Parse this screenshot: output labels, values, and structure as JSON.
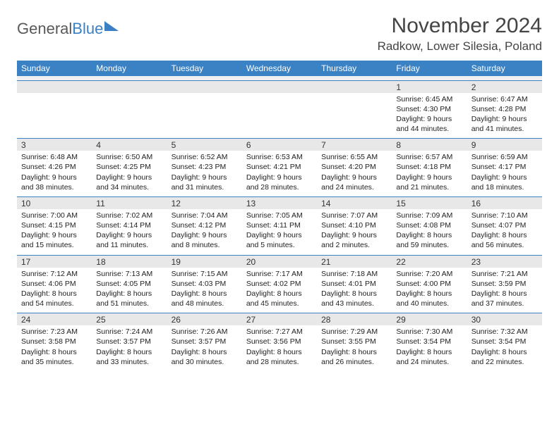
{
  "brand": {
    "part1": "General",
    "part2": "Blue"
  },
  "title": "November 2024",
  "location": "Radkow, Lower Silesia, Poland",
  "colors": {
    "header_bg": "#3b82c4",
    "header_fg": "#ffffff",
    "daynum_bg": "#e8e8e8",
    "border": "#3b82c4",
    "text": "#222222",
    "title_color": "#444444"
  },
  "dayNames": [
    "Sunday",
    "Monday",
    "Tuesday",
    "Wednesday",
    "Thursday",
    "Friday",
    "Saturday"
  ],
  "weeks": [
    [
      {
        "num": "",
        "sunrise": "",
        "sunset": "",
        "daylight": ""
      },
      {
        "num": "",
        "sunrise": "",
        "sunset": "",
        "daylight": ""
      },
      {
        "num": "",
        "sunrise": "",
        "sunset": "",
        "daylight": ""
      },
      {
        "num": "",
        "sunrise": "",
        "sunset": "",
        "daylight": ""
      },
      {
        "num": "",
        "sunrise": "",
        "sunset": "",
        "daylight": ""
      },
      {
        "num": "1",
        "sunrise": "Sunrise: 6:45 AM",
        "sunset": "Sunset: 4:30 PM",
        "daylight": "Daylight: 9 hours and 44 minutes."
      },
      {
        "num": "2",
        "sunrise": "Sunrise: 6:47 AM",
        "sunset": "Sunset: 4:28 PM",
        "daylight": "Daylight: 9 hours and 41 minutes."
      }
    ],
    [
      {
        "num": "3",
        "sunrise": "Sunrise: 6:48 AM",
        "sunset": "Sunset: 4:26 PM",
        "daylight": "Daylight: 9 hours and 38 minutes."
      },
      {
        "num": "4",
        "sunrise": "Sunrise: 6:50 AM",
        "sunset": "Sunset: 4:25 PM",
        "daylight": "Daylight: 9 hours and 34 minutes."
      },
      {
        "num": "5",
        "sunrise": "Sunrise: 6:52 AM",
        "sunset": "Sunset: 4:23 PM",
        "daylight": "Daylight: 9 hours and 31 minutes."
      },
      {
        "num": "6",
        "sunrise": "Sunrise: 6:53 AM",
        "sunset": "Sunset: 4:21 PM",
        "daylight": "Daylight: 9 hours and 28 minutes."
      },
      {
        "num": "7",
        "sunrise": "Sunrise: 6:55 AM",
        "sunset": "Sunset: 4:20 PM",
        "daylight": "Daylight: 9 hours and 24 minutes."
      },
      {
        "num": "8",
        "sunrise": "Sunrise: 6:57 AM",
        "sunset": "Sunset: 4:18 PM",
        "daylight": "Daylight: 9 hours and 21 minutes."
      },
      {
        "num": "9",
        "sunrise": "Sunrise: 6:59 AM",
        "sunset": "Sunset: 4:17 PM",
        "daylight": "Daylight: 9 hours and 18 minutes."
      }
    ],
    [
      {
        "num": "10",
        "sunrise": "Sunrise: 7:00 AM",
        "sunset": "Sunset: 4:15 PM",
        "daylight": "Daylight: 9 hours and 15 minutes."
      },
      {
        "num": "11",
        "sunrise": "Sunrise: 7:02 AM",
        "sunset": "Sunset: 4:14 PM",
        "daylight": "Daylight: 9 hours and 11 minutes."
      },
      {
        "num": "12",
        "sunrise": "Sunrise: 7:04 AM",
        "sunset": "Sunset: 4:12 PM",
        "daylight": "Daylight: 9 hours and 8 minutes."
      },
      {
        "num": "13",
        "sunrise": "Sunrise: 7:05 AM",
        "sunset": "Sunset: 4:11 PM",
        "daylight": "Daylight: 9 hours and 5 minutes."
      },
      {
        "num": "14",
        "sunrise": "Sunrise: 7:07 AM",
        "sunset": "Sunset: 4:10 PM",
        "daylight": "Daylight: 9 hours and 2 minutes."
      },
      {
        "num": "15",
        "sunrise": "Sunrise: 7:09 AM",
        "sunset": "Sunset: 4:08 PM",
        "daylight": "Daylight: 8 hours and 59 minutes."
      },
      {
        "num": "16",
        "sunrise": "Sunrise: 7:10 AM",
        "sunset": "Sunset: 4:07 PM",
        "daylight": "Daylight: 8 hours and 56 minutes."
      }
    ],
    [
      {
        "num": "17",
        "sunrise": "Sunrise: 7:12 AM",
        "sunset": "Sunset: 4:06 PM",
        "daylight": "Daylight: 8 hours and 54 minutes."
      },
      {
        "num": "18",
        "sunrise": "Sunrise: 7:13 AM",
        "sunset": "Sunset: 4:05 PM",
        "daylight": "Daylight: 8 hours and 51 minutes."
      },
      {
        "num": "19",
        "sunrise": "Sunrise: 7:15 AM",
        "sunset": "Sunset: 4:03 PM",
        "daylight": "Daylight: 8 hours and 48 minutes."
      },
      {
        "num": "20",
        "sunrise": "Sunrise: 7:17 AM",
        "sunset": "Sunset: 4:02 PM",
        "daylight": "Daylight: 8 hours and 45 minutes."
      },
      {
        "num": "21",
        "sunrise": "Sunrise: 7:18 AM",
        "sunset": "Sunset: 4:01 PM",
        "daylight": "Daylight: 8 hours and 43 minutes."
      },
      {
        "num": "22",
        "sunrise": "Sunrise: 7:20 AM",
        "sunset": "Sunset: 4:00 PM",
        "daylight": "Daylight: 8 hours and 40 minutes."
      },
      {
        "num": "23",
        "sunrise": "Sunrise: 7:21 AM",
        "sunset": "Sunset: 3:59 PM",
        "daylight": "Daylight: 8 hours and 37 minutes."
      }
    ],
    [
      {
        "num": "24",
        "sunrise": "Sunrise: 7:23 AM",
        "sunset": "Sunset: 3:58 PM",
        "daylight": "Daylight: 8 hours and 35 minutes."
      },
      {
        "num": "25",
        "sunrise": "Sunrise: 7:24 AM",
        "sunset": "Sunset: 3:57 PM",
        "daylight": "Daylight: 8 hours and 33 minutes."
      },
      {
        "num": "26",
        "sunrise": "Sunrise: 7:26 AM",
        "sunset": "Sunset: 3:57 PM",
        "daylight": "Daylight: 8 hours and 30 minutes."
      },
      {
        "num": "27",
        "sunrise": "Sunrise: 7:27 AM",
        "sunset": "Sunset: 3:56 PM",
        "daylight": "Daylight: 8 hours and 28 minutes."
      },
      {
        "num": "28",
        "sunrise": "Sunrise: 7:29 AM",
        "sunset": "Sunset: 3:55 PM",
        "daylight": "Daylight: 8 hours and 26 minutes."
      },
      {
        "num": "29",
        "sunrise": "Sunrise: 7:30 AM",
        "sunset": "Sunset: 3:54 PM",
        "daylight": "Daylight: 8 hours and 24 minutes."
      },
      {
        "num": "30",
        "sunrise": "Sunrise: 7:32 AM",
        "sunset": "Sunset: 3:54 PM",
        "daylight": "Daylight: 8 hours and 22 minutes."
      }
    ]
  ]
}
